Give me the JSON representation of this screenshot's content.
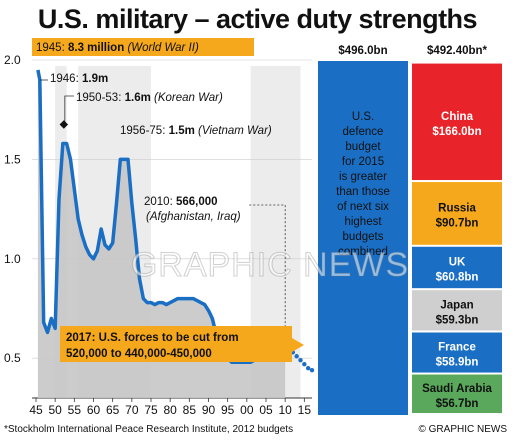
{
  "title": "U.S. military – active duty strengths",
  "footnote": "*Stockholm International Peace Research Institute, 2012 budgets",
  "credit": "© GRAPHIC NEWS",
  "watermark": "GRAPHIC NEWS",
  "colors": {
    "line": "#1a6fc4",
    "area": "#c6c6c6",
    "us_bar": "#1a6fc4",
    "china": "#e8232a",
    "russia": "#f6a81c",
    "uk": "#1a6fc4",
    "japan": "#cfcfcf",
    "france": "#1a6fc4",
    "saudi": "#5aa85c",
    "highlight": "#f6a81c"
  },
  "chart_data": [
    {
      "type": "line",
      "title": "",
      "xlabel": "",
      "ylabel": "",
      "unit": "millions",
      "xlim": [
        1945,
        2017
      ],
      "ylim": [
        0.3,
        2.0
      ],
      "x_ticks": [
        "45",
        "50",
        "55",
        "60",
        "65",
        "70",
        "75",
        "80",
        "85",
        "90",
        "95",
        "00",
        "05",
        "10",
        "15"
      ],
      "y_ticks": [
        "0.5",
        "1.0",
        "1.5",
        "2.0"
      ],
      "series": [
        {
          "name": "",
          "x": [
            1945.5,
            1946,
            1947,
            1948,
            1949,
            1950,
            1951,
            1952,
            1953,
            1954,
            1955,
            1956,
            1957,
            1958,
            1959,
            1960,
            1961,
            1962,
            1963,
            1964,
            1965,
            1966,
            1967,
            1968,
            1969,
            1970,
            1971,
            1972,
            1973,
            1974,
            1975,
            1976,
            1977,
            1978,
            1979,
            1980,
            1981,
            1982,
            1983,
            1984,
            1985,
            1986,
            1987,
            1988,
            1989,
            1990,
            1991,
            1992,
            1993,
            1994,
            1995,
            1996,
            1997,
            1998,
            1999,
            2000,
            2001,
            2002,
            2003,
            2004,
            2005,
            2006,
            2007,
            2008,
            2009,
            2010
          ],
          "values": [
            1.95,
            1.9,
            0.68,
            0.63,
            0.7,
            0.65,
            1.3,
            1.58,
            1.58,
            1.5,
            1.35,
            1.2,
            1.12,
            1.06,
            1.02,
            1.0,
            1.04,
            1.15,
            1.07,
            1.05,
            1.08,
            1.28,
            1.5,
            1.5,
            1.5,
            1.28,
            1.1,
            0.9,
            0.8,
            0.78,
            0.78,
            0.77,
            0.78,
            0.78,
            0.77,
            0.78,
            0.79,
            0.8,
            0.8,
            0.8,
            0.8,
            0.8,
            0.79,
            0.78,
            0.77,
            0.74,
            0.7,
            0.62,
            0.55,
            0.52,
            0.5,
            0.48,
            0.48,
            0.48,
            0.48,
            0.48,
            0.48,
            0.49,
            0.5,
            0.5,
            0.51,
            0.52,
            0.54,
            0.55,
            0.56,
            0.566
          ]
        },
        {
          "name": "",
          "projection": true,
          "x": [
            2011,
            2012,
            2013,
            2014,
            2015,
            2016,
            2017
          ],
          "values": [
            0.55,
            0.53,
            0.51,
            0.49,
            0.47,
            0.45,
            0.44
          ]
        }
      ],
      "shaded_periods": [
        [
          1950,
          1953
        ],
        [
          1956,
          1975
        ],
        [
          2001,
          2014
        ]
      ],
      "annotations": {
        "ww2": {
          "label": "1945: ",
          "value": "8.3 million",
          "note": "(World War II)"
        },
        "y1946": {
          "label": "1946: ",
          "value": "1.9m"
        },
        "korea": {
          "label": "1950-53: ",
          "value": "1.6m",
          "note": "(Korean War)",
          "x": 1952,
          "y": 1.58
        },
        "vietnam": {
          "label": "1956-75: ",
          "value": "1.5m",
          "note": "(Vietnam War)"
        },
        "y2010": {
          "label": "2010: ",
          "value": "566,000",
          "note": "(Afghanistan, Iraq)",
          "x": 2010,
          "y": 0.566
        },
        "cuts": {
          "line1": "2017: U.S. forces to be cut from",
          "line2": "520,000 to 440,000-450,000"
        }
      }
    },
    {
      "type": "bar",
      "title": "",
      "unit": "US$ bn",
      "us": {
        "total_label": "$496.0bn",
        "value": 496.0,
        "text": [
          "U.S.",
          "defence",
          "budget",
          "for 2015",
          "is greater",
          "than those",
          "of next six",
          "highest",
          "budgets",
          "combined"
        ]
      },
      "others_total_label": "$492.40bn*",
      "others_total": 492.4,
      "categories": [
        "China",
        "Russia",
        "UK",
        "Japan",
        "France",
        "Saudi Arabia"
      ],
      "values": [
        166.0,
        90.7,
        60.8,
        59.3,
        58.9,
        56.7
      ],
      "value_labels": [
        "$166.0bn",
        "$90.7bn",
        "$60.8bn",
        "$59.3bn",
        "$58.9bn",
        "$56.7bn"
      ]
    }
  ]
}
